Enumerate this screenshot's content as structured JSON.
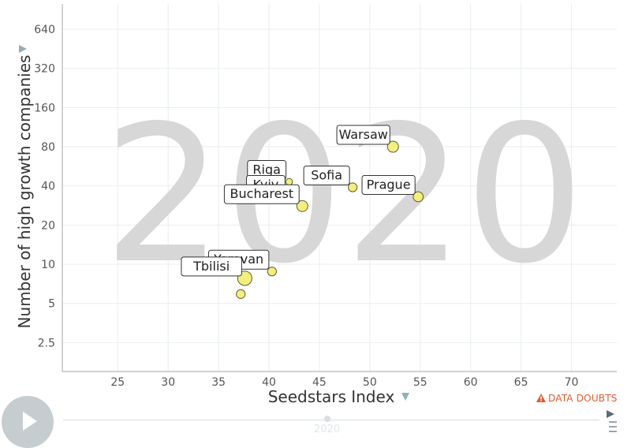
{
  "colors": {
    "bubble_fill": "#f2f07a",
    "bubble_stroke": "#5c5c3a",
    "grid": "#e8eeee",
    "axis": "#9da5a8",
    "watermark": "#d7d7d7",
    "accent": "#e8582a",
    "axis_arrow": "#93aeb8"
  },
  "watermark_year": "2020",
  "data_doubts_label": "DATA DOUBTS",
  "data_doubts_icon": "warning-icon",
  "play_icon": "play-icon",
  "timeline": {
    "value": "2020"
  },
  "chart_data": {
    "type": "scatter",
    "title": "",
    "xlabel": "Seedstars Index",
    "ylabel": "Number of high growth companies",
    "x_scale": "linear",
    "y_scale": "log",
    "xlim": [
      19.5,
      74.5
    ],
    "ylim": [
      1.5,
      1000
    ],
    "x_ticks": [
      25,
      30,
      35,
      40,
      45,
      50,
      55,
      60,
      65,
      70
    ],
    "y_ticks": [
      2.5,
      5,
      10,
      20,
      40,
      80,
      160,
      320,
      640
    ],
    "y_tick_labels": [
      "2.5",
      "5",
      "10",
      "20",
      "40",
      "80",
      "160",
      "320",
      "640"
    ],
    "grid": true,
    "year": "2020",
    "points": [
      {
        "label": "Warsaw",
        "x": 52.3,
        "y": 80,
        "size": 1.0
      },
      {
        "label": "Prague",
        "x": 54.8,
        "y": 33,
        "size": 0.9
      },
      {
        "label": "Sofia",
        "x": 48.3,
        "y": 39,
        "size": 0.8
      },
      {
        "label": "Riga",
        "x": 42.0,
        "y": 43,
        "size": 0.6
      },
      {
        "label": "Kyiv",
        "x": 41.9,
        "y": 33,
        "size": 1.1
      },
      {
        "label": "Bucharest",
        "x": 43.3,
        "y": 28,
        "size": 1.0
      },
      {
        "label": "Yerevan",
        "x": 40.3,
        "y": 8.8,
        "size": 0.8
      },
      {
        "label": "Tbilisi",
        "x": 37.6,
        "y": 7.8,
        "size": 1.3
      },
      {
        "label": "",
        "x": 37.2,
        "y": 5.9,
        "size": 0.8
      }
    ]
  }
}
